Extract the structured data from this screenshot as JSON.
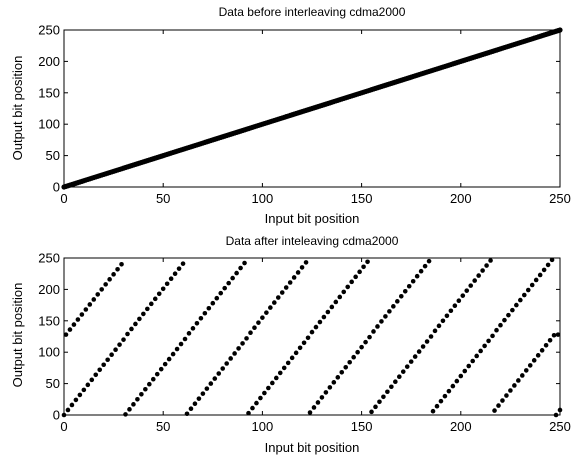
{
  "chart_data": [
    {
      "type": "scatter",
      "title": "Data before interleaving cdma2000",
      "xlabel": "Input bit position",
      "ylabel": "Output bit position",
      "xlim": [
        0,
        250
      ],
      "ylim": [
        0,
        250
      ],
      "xticks": [
        0,
        50,
        100,
        150,
        200,
        250
      ],
      "yticks": [
        0,
        50,
        100,
        150,
        200,
        250
      ],
      "grid": false,
      "marker_color": "#000000",
      "mapping": "identity",
      "x_start": 0,
      "x_end": 250,
      "x_step": 1
    },
    {
      "type": "scatter",
      "title": "Data after inteleaving cdma2000",
      "xlabel": "Input bit position",
      "ylabel": "Output bit position",
      "xlim": [
        0,
        250
      ],
      "ylim": [
        0,
        250
      ],
      "xticks": [
        0,
        50,
        100,
        150,
        200,
        250
      ],
      "yticks": [
        0,
        50,
        100,
        150,
        200,
        250
      ],
      "grid": false,
      "marker_color": "#000000",
      "mapping": "interleaved",
      "x_start": 0,
      "x_end": 250,
      "x_step": 1
    }
  ]
}
